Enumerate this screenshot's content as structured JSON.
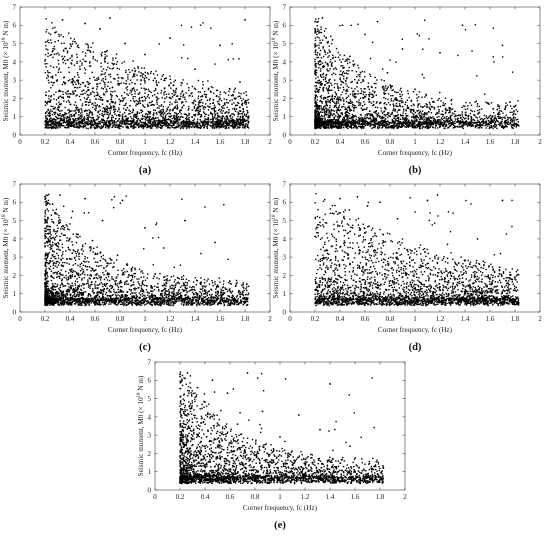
{
  "chart_data": [
    {
      "panel": "(a)",
      "type": "scatter",
      "xlabel": "Corner frequency, fc (Hz)",
      "ylabel": "Seismic moment, M0 (× 10^18 N m)",
      "ylabel_parts": {
        "prefix": "Seismic moment, M0 (× 10",
        "sup": "18",
        "suffix": " N m)"
      },
      "xlim": [
        0,
        2
      ],
      "ylim": [
        0,
        7
      ],
      "xticks": [
        "0",
        "0.2",
        "0.4",
        "0.6",
        "0.8",
        "1",
        "1.2",
        "1.4",
        "1.6",
        "1.8",
        "2"
      ],
      "yticks": [
        "0",
        "1",
        "2",
        "3",
        "4",
        "5",
        "6",
        "7"
      ],
      "color": "#000000",
      "points": [
        [
          0.22,
          0.6
        ],
        [
          0.24,
          1.8
        ],
        [
          0.26,
          3.2
        ],
        [
          0.28,
          5.6
        ],
        [
          0.3,
          0.9
        ],
        [
          0.32,
          2.4
        ],
        [
          0.34,
          6.3
        ],
        [
          0.36,
          1.2
        ],
        [
          0.38,
          4.1
        ],
        [
          0.4,
          0.7
        ],
        [
          0.42,
          2.9
        ],
        [
          0.44,
          5.1
        ],
        [
          0.46,
          1.5
        ],
        [
          0.48,
          3.6
        ],
        [
          0.5,
          0.8
        ],
        [
          0.52,
          6.1
        ],
        [
          0.54,
          2.2
        ],
        [
          0.56,
          4.6
        ],
        [
          0.58,
          1.1
        ],
        [
          0.6,
          3.0
        ],
        [
          0.62,
          0.6
        ],
        [
          0.64,
          5.8
        ],
        [
          0.66,
          1.9
        ],
        [
          0.68,
          4.0
        ],
        [
          0.7,
          0.9
        ],
        [
          0.72,
          6.4
        ],
        [
          0.74,
          2.6
        ],
        [
          0.76,
          1.3
        ],
        [
          0.78,
          3.3
        ],
        [
          0.8,
          0.7
        ],
        [
          0.84,
          5.0
        ],
        [
          0.88,
          1.6
        ],
        [
          0.92,
          2.8
        ],
        [
          0.96,
          0.8
        ],
        [
          1.0,
          4.4
        ],
        [
          1.04,
          1.2
        ],
        [
          1.08,
          3.1
        ],
        [
          1.12,
          0.7
        ],
        [
          1.16,
          2.0
        ],
        [
          1.2,
          5.3
        ],
        [
          1.25,
          1.0
        ],
        [
          1.3,
          2.4
        ],
        [
          1.35,
          0.6
        ],
        [
          1.4,
          3.6
        ],
        [
          1.45,
          1.1
        ],
        [
          1.5,
          1.9
        ],
        [
          1.55,
          0.6
        ],
        [
          1.6,
          4.9
        ],
        [
          1.65,
          1.0
        ],
        [
          1.7,
          0.7
        ],
        [
          1.76,
          2.9
        ],
        [
          1.8,
          6.3
        ],
        [
          1.82,
          0.5
        ]
      ]
    },
    {
      "panel": "(b)",
      "type": "scatter",
      "xlabel": "Corner frequency, fc (Hz)",
      "ylabel": "Seismic moment, M0 (× 10^18 N m)",
      "ylabel_parts": {
        "prefix": "Seismic moment, M0 (× 10",
        "sup": "18",
        "suffix": " N m)"
      },
      "xlim": [
        0,
        2
      ],
      "ylim": [
        0,
        7
      ],
      "xticks": [
        "0",
        "0.2",
        "0.4",
        "0.6",
        "0.8",
        "1",
        "1.2",
        "1.4",
        "1.6",
        "1.8",
        "2"
      ],
      "yticks": [
        "0",
        "1",
        "2",
        "3",
        "4",
        "5",
        "6",
        "7"
      ],
      "color": "#000000",
      "points": [
        [
          0.2,
          6.2
        ],
        [
          0.21,
          0.8
        ],
        [
          0.22,
          4.5
        ],
        [
          0.24,
          2.6
        ],
        [
          0.26,
          6.4
        ],
        [
          0.28,
          1.3
        ],
        [
          0.3,
          3.9
        ],
        [
          0.32,
          0.7
        ],
        [
          0.34,
          5.2
        ],
        [
          0.36,
          2.1
        ],
        [
          0.38,
          1.0
        ],
        [
          0.4,
          3.3
        ],
        [
          0.42,
          6.0
        ],
        [
          0.44,
          0.8
        ],
        [
          0.46,
          2.4
        ],
        [
          0.48,
          4.3
        ],
        [
          0.5,
          1.1
        ],
        [
          0.52,
          0.6
        ],
        [
          0.55,
          3.0
        ],
        [
          0.58,
          1.6
        ],
        [
          0.6,
          5.5
        ],
        [
          0.63,
          0.9
        ],
        [
          0.66,
          2.2
        ],
        [
          0.7,
          6.2
        ],
        [
          0.74,
          1.2
        ],
        [
          0.78,
          3.4
        ],
        [
          0.82,
          0.7
        ],
        [
          0.86,
          1.9
        ],
        [
          0.9,
          4.7
        ],
        [
          0.95,
          0.8
        ],
        [
          1.0,
          2.5
        ],
        [
          1.05,
          1.0
        ],
        [
          1.1,
          0.6
        ],
        [
          1.15,
          1.8
        ],
        [
          1.2,
          4.5
        ],
        [
          1.26,
          0.8
        ],
        [
          1.32,
          1.3
        ],
        [
          1.38,
          6.0
        ],
        [
          1.44,
          0.6
        ],
        [
          1.5,
          1.7
        ],
        [
          1.56,
          0.7
        ],
        [
          1.62,
          1.0
        ],
        [
          1.7,
          4.9
        ],
        [
          1.76,
          1.8
        ],
        [
          1.8,
          0.6
        ],
        [
          1.83,
          0.5
        ]
      ]
    },
    {
      "panel": "(c)",
      "type": "scatter",
      "xlabel": "Corner frequency, fc (Hz)",
      "ylabel": "Seismic moment, M0 (× 10^18 N m)",
      "ylabel_parts": {
        "prefix": "Seismic moment, M0 (× 10",
        "sup": "18",
        "suffix": " N m)"
      },
      "xlim": [
        0,
        2
      ],
      "ylim": [
        0,
        7
      ],
      "xticks": [
        "0",
        "0.2",
        "0.4",
        "0.6",
        "0.8",
        "1",
        "1.2",
        "1.4",
        "1.6",
        "1.8",
        "2"
      ],
      "yticks": [
        "0",
        "1",
        "2",
        "3",
        "4",
        "5",
        "6",
        "7"
      ],
      "color": "#000000",
      "points": [
        [
          0.2,
          6.3
        ],
        [
          0.21,
          1.1
        ],
        [
          0.22,
          4.7
        ],
        [
          0.24,
          2.8
        ],
        [
          0.26,
          5.9
        ],
        [
          0.28,
          0.9
        ],
        [
          0.3,
          3.6
        ],
        [
          0.32,
          6.4
        ],
        [
          0.34,
          1.5
        ],
        [
          0.36,
          4.2
        ],
        [
          0.38,
          0.7
        ],
        [
          0.4,
          2.9
        ],
        [
          0.42,
          5.5
        ],
        [
          0.44,
          1.2
        ],
        [
          0.46,
          3.3
        ],
        [
          0.48,
          0.6
        ],
        [
          0.5,
          2.1
        ],
        [
          0.52,
          6.2
        ],
        [
          0.55,
          1.0
        ],
        [
          0.58,
          3.9
        ],
        [
          0.6,
          0.8
        ],
        [
          0.63,
          2.5
        ],
        [
          0.66,
          5.0
        ],
        [
          0.7,
          1.3
        ],
        [
          0.74,
          0.7
        ],
        [
          0.78,
          3.1
        ],
        [
          0.82,
          6.1
        ],
        [
          0.86,
          1.1
        ],
        [
          0.9,
          2.0
        ],
        [
          0.95,
          0.6
        ],
        [
          1.0,
          4.6
        ],
        [
          1.05,
          1.4
        ],
        [
          1.1,
          0.7
        ],
        [
          1.15,
          3.5
        ],
        [
          1.2,
          0.9
        ],
        [
          1.26,
          1.6
        ],
        [
          1.32,
          5.0
        ],
        [
          1.38,
          0.6
        ],
        [
          1.44,
          1.1
        ],
        [
          1.5,
          0.5
        ],
        [
          1.56,
          3.8
        ],
        [
          1.62,
          0.6
        ],
        [
          1.7,
          0.9
        ],
        [
          1.76,
          0.5
        ],
        [
          1.82,
          0.4
        ]
      ]
    },
    {
      "panel": "(d)",
      "type": "scatter",
      "xlabel": "Corner frequency, fc (Hz)",
      "ylabel": "Seismic moment, M0 (× 10^18 N m)",
      "ylabel_parts": {
        "prefix": "Seismic moment, M0 (× 10",
        "sup": "18",
        "suffix": " N m)"
      },
      "xlim": [
        0,
        2
      ],
      "ylim": [
        0,
        7
      ],
      "xticks": [
        "0",
        "0.2",
        "0.4",
        "0.6",
        "0.8",
        "1",
        "1.2",
        "1.4",
        "1.6",
        "1.8",
        "2"
      ],
      "yticks": [
        "0",
        "1",
        "2",
        "3",
        "4",
        "5",
        "6",
        "7"
      ],
      "color": "#000000",
      "points": [
        [
          0.22,
          0.6
        ],
        [
          0.24,
          4.9
        ],
        [
          0.26,
          1.8
        ],
        [
          0.28,
          0.8
        ],
        [
          0.3,
          3.2
        ],
        [
          0.32,
          1.1
        ],
        [
          0.34,
          5.4
        ],
        [
          0.36,
          0.7
        ],
        [
          0.38,
          2.3
        ],
        [
          0.4,
          6.2
        ],
        [
          0.42,
          1.0
        ],
        [
          0.44,
          3.8
        ],
        [
          0.46,
          0.6
        ],
        [
          0.48,
          2.6
        ],
        [
          0.5,
          4.6
        ],
        [
          0.52,
          1.3
        ],
        [
          0.54,
          6.3
        ],
        [
          0.56,
          0.8
        ],
        [
          0.58,
          3.0
        ],
        [
          0.6,
          1.6
        ],
        [
          0.62,
          5.8
        ],
        [
          0.64,
          0.7
        ],
        [
          0.66,
          2.2
        ],
        [
          0.68,
          4.3
        ],
        [
          0.7,
          1.0
        ],
        [
          0.72,
          6.0
        ],
        [
          0.75,
          2.9
        ],
        [
          0.78,
          0.8
        ],
        [
          0.82,
          1.7
        ],
        [
          0.86,
          5.1
        ],
        [
          0.9,
          0.9
        ],
        [
          0.94,
          3.4
        ],
        [
          0.98,
          1.2
        ],
        [
          1.02,
          0.7
        ],
        [
          1.06,
          2.5
        ],
        [
          1.1,
          6.1
        ],
        [
          1.14,
          1.0
        ],
        [
          1.18,
          6.4
        ],
        [
          1.22,
          0.8
        ],
        [
          1.26,
          3.7
        ],
        [
          1.3,
          1.4
        ],
        [
          1.35,
          0.7
        ],
        [
          1.4,
          2.8
        ],
        [
          1.45,
          1.0
        ],
        [
          1.5,
          4.0
        ],
        [
          1.55,
          0.7
        ],
        [
          1.6,
          1.8
        ],
        [
          1.65,
          0.8
        ],
        [
          1.7,
          6.1
        ],
        [
          1.75,
          0.9
        ],
        [
          1.8,
          1.9
        ],
        [
          1.83,
          0.5
        ]
      ]
    },
    {
      "panel": "(e)",
      "type": "scatter",
      "xlabel": "Corner frequency, fc (Hz)",
      "ylabel": "Seismic moment, M0 (× 10^18 N m)",
      "ylabel_parts": {
        "prefix": "Seismic moment, M0 (× 10",
        "sup": "18",
        "suffix": " N m)"
      },
      "xlim": [
        0,
        2
      ],
      "ylim": [
        0,
        7
      ],
      "xticks": [
        "0",
        "0.2",
        "0.4",
        "0.6",
        "0.8",
        "1",
        "1.2",
        "1.4",
        "1.6",
        "1.8",
        "2"
      ],
      "yticks": [
        "0",
        "1",
        "2",
        "3",
        "4",
        "5",
        "6",
        "7"
      ],
      "color": "#000000",
      "points": [
        [
          0.2,
          6.2
        ],
        [
          0.21,
          0.9
        ],
        [
          0.22,
          4.4
        ],
        [
          0.24,
          2.5
        ],
        [
          0.26,
          6.4
        ],
        [
          0.28,
          1.2
        ],
        [
          0.3,
          3.7
        ],
        [
          0.32,
          0.7
        ],
        [
          0.34,
          5.6
        ],
        [
          0.36,
          2.0
        ],
        [
          0.38,
          1.0
        ],
        [
          0.4,
          4.8
        ],
        [
          0.42,
          0.8
        ],
        [
          0.44,
          2.7
        ],
        [
          0.46,
          6.0
        ],
        [
          0.48,
          1.3
        ],
        [
          0.5,
          3.2
        ],
        [
          0.52,
          0.6
        ],
        [
          0.55,
          2.2
        ],
        [
          0.58,
          5.3
        ],
        [
          0.6,
          1.1
        ],
        [
          0.63,
          0.7
        ],
        [
          0.66,
          3.6
        ],
        [
          0.7,
          1.4
        ],
        [
          0.74,
          6.4
        ],
        [
          0.78,
          0.8
        ],
        [
          0.82,
          2.1
        ],
        [
          0.86,
          4.3
        ],
        [
          0.9,
          1.0
        ],
        [
          0.95,
          0.6
        ],
        [
          1.0,
          2.9
        ],
        [
          1.05,
          1.2
        ],
        [
          1.1,
          0.7
        ],
        [
          1.15,
          4.1
        ],
        [
          1.2,
          0.9
        ],
        [
          1.26,
          1.5
        ],
        [
          1.32,
          3.3
        ],
        [
          1.38,
          0.6
        ],
        [
          1.4,
          5.8
        ],
        [
          1.44,
          1.0
        ],
        [
          1.5,
          0.5
        ],
        [
          1.56,
          2.4
        ],
        [
          1.62,
          0.7
        ],
        [
          1.7,
          0.5
        ],
        [
          1.76,
          1.3
        ],
        [
          1.82,
          0.4
        ]
      ]
    }
  ]
}
